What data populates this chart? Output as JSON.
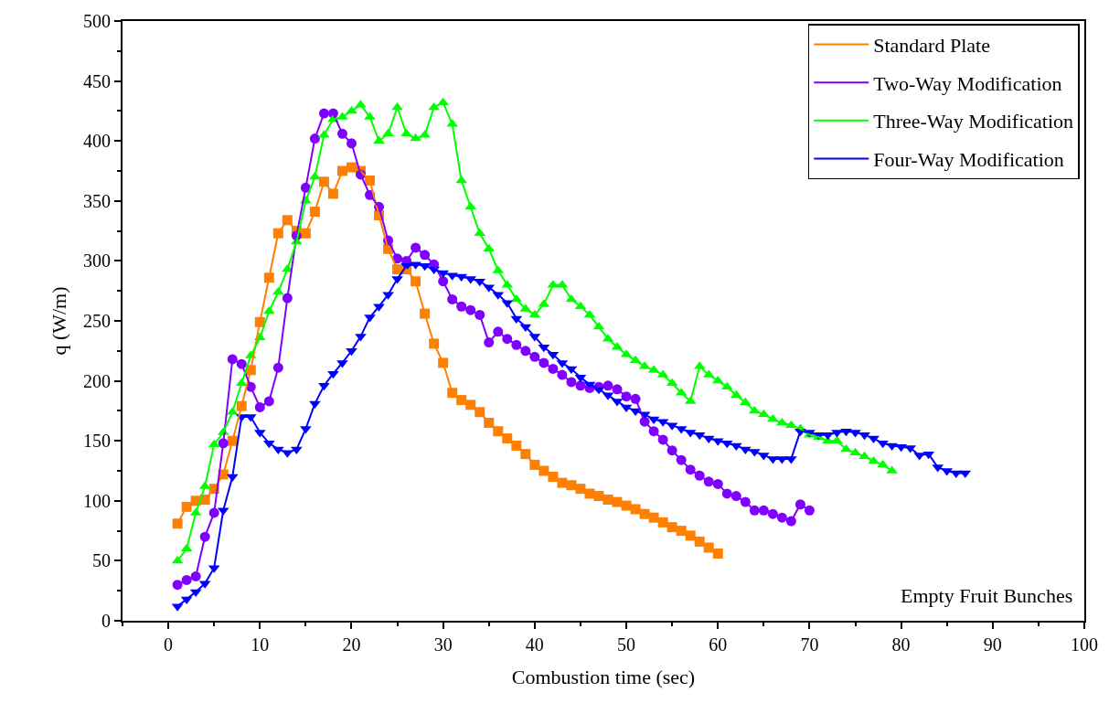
{
  "chart_data": {
    "type": "line",
    "xlabel": "Combustion time (sec)",
    "ylabel": "q (W/m)",
    "xlim": [
      -5,
      100
    ],
    "xticks": [
      0,
      10,
      20,
      30,
      40,
      50,
      60,
      70,
      80,
      90,
      100
    ],
    "ylim": [
      0,
      500
    ],
    "yticks": [
      0,
      50,
      100,
      150,
      200,
      250,
      300,
      350,
      400,
      450,
      500
    ],
    "legend": "top right",
    "line_style": "solid",
    "annotations": [
      "Empty Fruit Bunches"
    ],
    "series": [
      {
        "name": "Standard Plate",
        "color": "#ff8000",
        "marker": "square",
        "x": [
          1,
          2,
          3,
          4,
          5,
          6,
          7,
          8,
          9,
          10,
          11,
          12,
          13,
          14,
          15,
          16,
          17,
          18,
          19,
          20,
          21,
          22,
          23,
          24,
          25,
          26,
          27,
          28,
          29,
          30,
          31,
          32,
          33,
          34,
          35,
          36,
          37,
          38,
          39,
          40,
          41,
          42,
          43,
          44,
          45,
          46,
          47,
          48,
          49,
          50,
          51,
          52,
          53,
          54,
          55,
          56,
          57,
          58,
          59,
          60
        ],
        "values": [
          81,
          95,
          100,
          101,
          110,
          122,
          150,
          179,
          209,
          249,
          286,
          323,
          334,
          325,
          323,
          341,
          366,
          356,
          375,
          378,
          375,
          367,
          338,
          310,
          293,
          293,
          283,
          256,
          231,
          215,
          190,
          184,
          180,
          174,
          165,
          158,
          152,
          146,
          139,
          130,
          125,
          120,
          115,
          113,
          110,
          106,
          104,
          101,
          99,
          96,
          93,
          89,
          86,
          82,
          78,
          75,
          71,
          66,
          61,
          56
        ]
      },
      {
        "name": "Two-Way Modification",
        "color": "#8000ff",
        "marker": "circle",
        "x": [
          1,
          2,
          3,
          4,
          5,
          6,
          7,
          8,
          9,
          10,
          11,
          12,
          13,
          14,
          15,
          16,
          17,
          18,
          19,
          20,
          21,
          22,
          23,
          24,
          25,
          26,
          27,
          28,
          29,
          30,
          31,
          32,
          33,
          34,
          35,
          36,
          37,
          38,
          39,
          40,
          41,
          42,
          43,
          44,
          45,
          46,
          47,
          48,
          49,
          50,
          51,
          52,
          53,
          54,
          55,
          56,
          57,
          58,
          59,
          60,
          61,
          62,
          63,
          64,
          65,
          66,
          67,
          68,
          69,
          70
        ],
        "values": [
          30,
          34,
          37,
          70,
          90,
          148,
          218,
          214,
          195,
          178,
          183,
          211,
          269,
          321,
          361,
          402,
          423,
          423,
          406,
          398,
          372,
          355,
          345,
          317,
          302,
          300,
          311,
          305,
          297,
          283,
          268,
          262,
          259,
          255,
          232,
          241,
          235,
          230,
          225,
          220,
          215,
          210,
          205,
          199,
          196,
          194,
          195,
          196,
          193,
          187,
          185,
          166,
          158,
          151,
          142,
          134,
          126,
          121,
          116,
          114,
          106,
          104,
          99,
          92,
          92,
          89,
          86,
          83,
          97,
          92
        ]
      },
      {
        "name": "Three-Way Modification",
        "color": "#00ff00",
        "marker": "triangle",
        "x": [
          1,
          2,
          3,
          4,
          5,
          6,
          7,
          8,
          9,
          10,
          11,
          12,
          13,
          14,
          15,
          16,
          17,
          18,
          19,
          20,
          21,
          22,
          23,
          24,
          25,
          26,
          27,
          28,
          29,
          30,
          31,
          32,
          33,
          34,
          35,
          36,
          37,
          38,
          39,
          40,
          41,
          42,
          43,
          44,
          45,
          46,
          47,
          48,
          49,
          50,
          51,
          52,
          53,
          54,
          55,
          56,
          57,
          58,
          59,
          60,
          61,
          62,
          63,
          64,
          65,
          66,
          67,
          68,
          69,
          70,
          71,
          72,
          73,
          74,
          75,
          76,
          77,
          78,
          79
        ],
        "values": [
          50,
          60,
          90,
          112,
          147,
          157,
          174,
          198,
          221,
          236,
          258,
          274,
          293,
          316,
          350,
          370,
          405,
          418,
          420,
          425,
          430,
          420,
          400,
          406,
          428,
          406,
          402,
          405,
          428,
          432,
          414,
          367,
          345,
          323,
          310,
          292,
          280,
          268,
          260,
          255,
          264,
          280,
          280,
          268,
          262,
          255,
          245,
          235,
          228,
          222,
          217,
          212,
          209,
          205,
          198,
          190,
          183,
          212,
          205,
          200,
          195,
          188,
          182,
          175,
          172,
          168,
          165,
          163,
          160,
          155,
          153,
          150,
          150,
          143,
          140,
          137,
          133,
          130,
          125
        ]
      },
      {
        "name": "Four-Way Modification",
        "color": "#0000ff",
        "marker": "triangle-down",
        "x": [
          1,
          2,
          3,
          4,
          5,
          6,
          7,
          8,
          9,
          10,
          11,
          12,
          13,
          14,
          15,
          16,
          17,
          18,
          19,
          20,
          21,
          22,
          23,
          24,
          25,
          26,
          27,
          28,
          29,
          30,
          31,
          32,
          33,
          34,
          35,
          36,
          37,
          38,
          39,
          40,
          41,
          42,
          43,
          44,
          45,
          46,
          47,
          48,
          49,
          50,
          51,
          52,
          53,
          54,
          55,
          56,
          57,
          58,
          59,
          60,
          61,
          62,
          63,
          64,
          65,
          66,
          67,
          68,
          69,
          70,
          71,
          72,
          73,
          74,
          75,
          76,
          77,
          78,
          79,
          80,
          81,
          82,
          83,
          84,
          85,
          86,
          87
        ],
        "values": [
          12,
          18,
          24,
          31,
          44,
          92,
          120,
          170,
          170,
          157,
          148,
          143,
          140,
          143,
          160,
          181,
          196,
          206,
          215,
          225,
          237,
          253,
          262,
          272,
          285,
          296,
          297,
          296,
          293,
          290,
          288,
          287,
          285,
          283,
          278,
          272,
          265,
          252,
          245,
          237,
          228,
          222,
          215,
          210,
          203,
          197,
          193,
          188,
          183,
          178,
          175,
          172,
          168,
          166,
          163,
          160,
          157,
          155,
          152,
          150,
          148,
          146,
          143,
          141,
          138,
          135,
          135,
          135,
          158,
          157,
          155,
          155,
          157,
          158,
          157,
          155,
          152,
          148,
          146,
          145,
          144,
          138,
          139,
          128,
          125,
          123,
          123
        ]
      }
    ]
  }
}
